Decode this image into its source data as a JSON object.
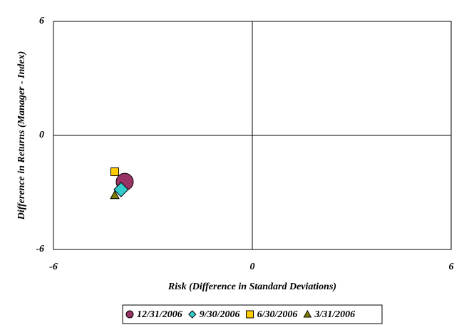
{
  "chart_data": {
    "type": "scatter",
    "xlabel": "Risk (Difference in Standard Deviations)",
    "ylabel": "Difference in Returns (Manager - Index)",
    "xlim": [
      -6,
      6
    ],
    "ylim": [
      -6,
      6
    ],
    "xticks": [
      -6,
      0,
      6
    ],
    "yticks": [
      -6,
      0,
      6
    ],
    "grid": false,
    "legend": "bottom",
    "series": [
      {
        "name": "12/31/2006",
        "color": "#993366",
        "marker": "circle",
        "x": [
          -3.85
        ],
        "values": [
          -2.44
        ]
      },
      {
        "name": "9/30/2006",
        "color": "#33cccc",
        "marker": "diamond",
        "x": [
          -3.96
        ],
        "values": [
          -2.85
        ]
      },
      {
        "name": "6/30/2006",
        "color": "#ffcc00",
        "marker": "square",
        "x": [
          -4.15
        ],
        "values": [
          -1.91
        ]
      },
      {
        "name": "3/31/2006",
        "color": "#808000",
        "marker": "triangle",
        "x": [
          -4.15
        ],
        "values": [
          -3.15
        ]
      }
    ]
  }
}
